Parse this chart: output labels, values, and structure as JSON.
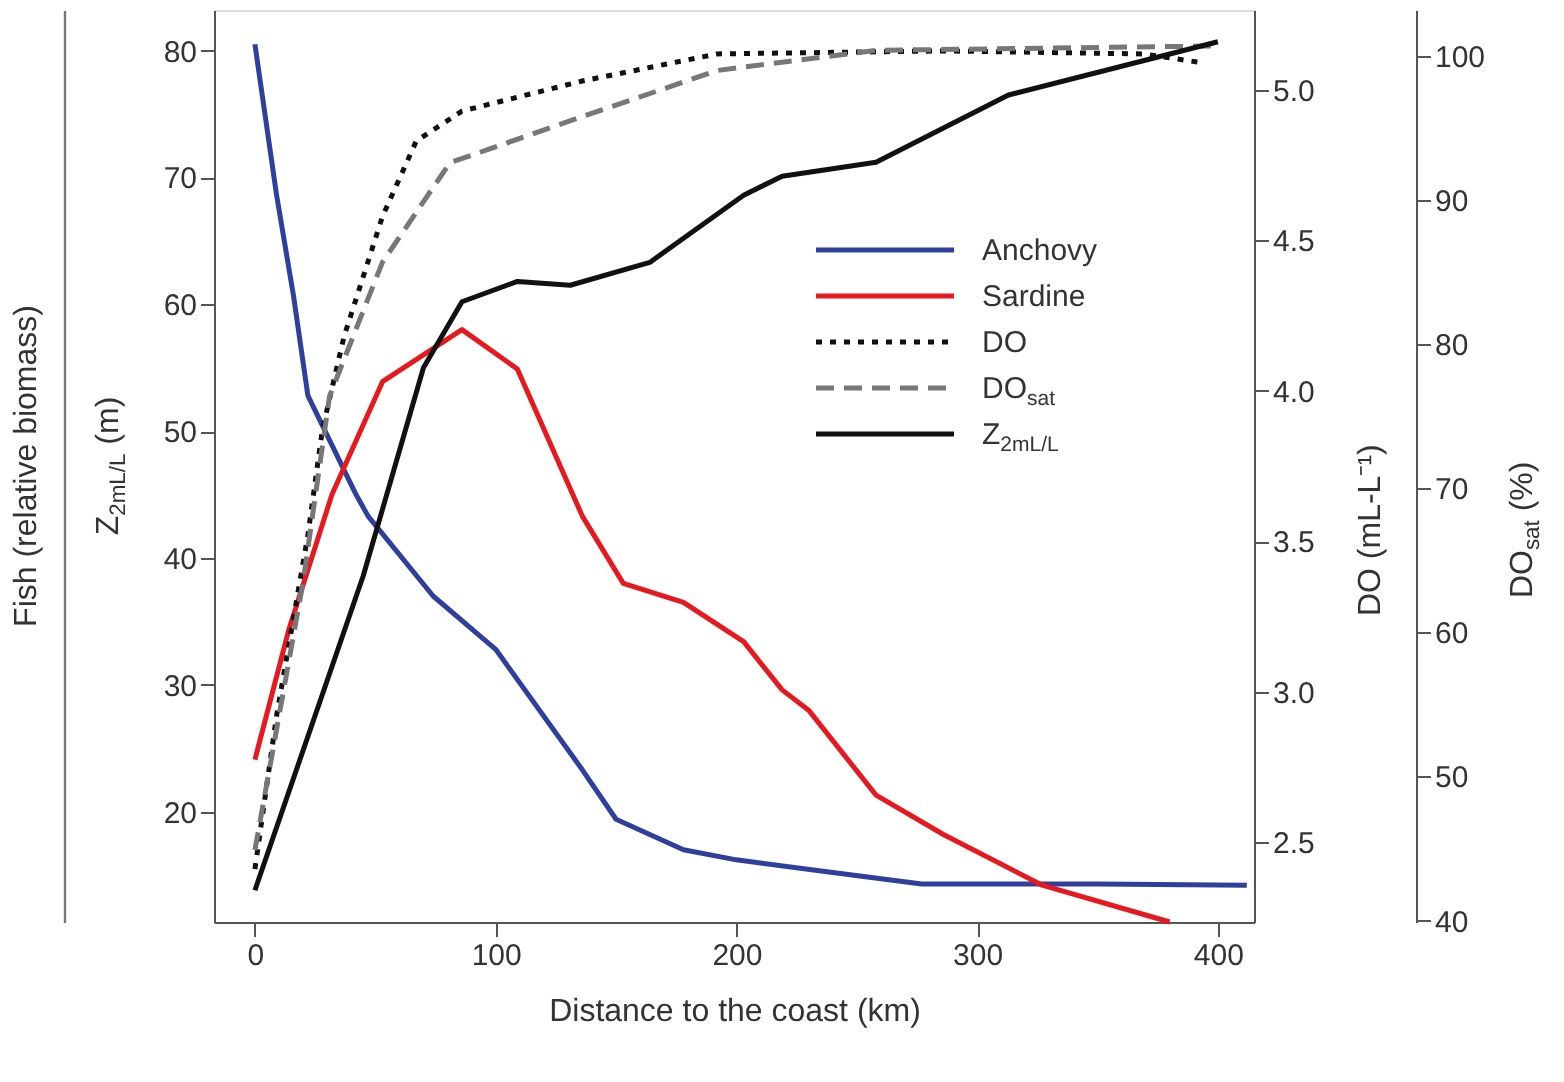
{
  "chart_data": {
    "type": "line",
    "xlabel": "Distance to the coast (km)",
    "ylabel": "Z$_{2mL/L}$ (m)",
    "y2label": "DO (mL-L⁻¹)",
    "y3label": "DO$_{sat}$ (%)",
    "annotations": [
      "Fish (relative biomass)"
    ],
    "xlim": [
      -17,
      415
    ],
    "xticks": [
      0,
      100,
      200,
      300,
      400
    ],
    "ylim": [
      11.3,
      83.2
    ],
    "yticks": [
      20,
      30,
      40,
      50,
      60,
      70,
      80
    ],
    "y2lim": [
      2.234,
      5.266
    ],
    "y2ticks": [
      2.5,
      {
        "value": 3.0,
        "label": "3.0"
      },
      3.5,
      {
        "value": 4.0,
        "label": "4.0"
      },
      4.5,
      {
        "value": 5.0,
        "label": "5.0"
      }
    ],
    "y3lim": [
      39.9,
      103.2
    ],
    "y3ticks": [
      40,
      50,
      60,
      70,
      80,
      90,
      100
    ],
    "grid": false,
    "legend": "top right",
    "marker": "none",
    "series": [
      {
        "name": "Anchovy",
        "color": "#2e3f9e",
        "line_style": "solid",
        "x": [
          0,
          9,
          16,
          22,
          42,
          47,
          74,
          100,
          136,
          150,
          178,
          200,
          240,
          277,
          350,
          412
        ],
        "values": [
          80.5,
          68.6,
          60.7,
          52.8,
          45,
          43.3,
          37,
          32.8,
          23.3,
          19.4,
          17,
          16.2,
          15.2,
          14.3,
          14.3,
          14.2
        ]
      },
      {
        "name": "Sardine",
        "color": "#e8191e",
        "line_style": "solid",
        "x": [
          0,
          14,
          32,
          53,
          86,
          109,
          136,
          153,
          178,
          203,
          219,
          230,
          258,
          286,
          327,
          380
        ],
        "values": [
          24.1,
          34.3,
          45,
          53.9,
          58,
          54.9,
          43.3,
          38,
          36.5,
          33.4,
          29.6,
          28,
          21.3,
          18.2,
          14.2,
          11.3
        ]
      },
      {
        "name": "DO",
        "color": "#111111",
        "axis": "y2",
        "line_style": "dotted",
        "x": [
          0,
          9,
          22,
          28,
          37,
          53,
          67,
          86,
          136,
          192,
          286,
          369,
          394
        ],
        "values": [
          2.41,
          2.92,
          3.52,
          3.87,
          4.18,
          4.58,
          4.83,
          4.93,
          5.03,
          5.12,
          5.13,
          5.12,
          5.09
        ]
      },
      {
        "name": "DO$_{sat}$",
        "color": "#777777",
        "axis": "y3",
        "line_style": "dashed",
        "x": [
          0,
          20,
          31,
          53,
          81,
          136,
          192,
          258,
          397
        ],
        "values": [
          44.9,
          63.5,
          76.4,
          85.7,
          92.6,
          95.8,
          99.0,
          100.4,
          100.7
        ]
      },
      {
        "name": "Z$_{2mL/L}$",
        "color": "#111111",
        "line_style": "solid",
        "x": [
          0,
          45,
          70,
          86,
          109,
          131,
          164,
          203,
          219,
          258,
          313,
          400
        ],
        "values": [
          13.8,
          38.6,
          55,
          60.2,
          61.8,
          61.5,
          63.3,
          68.6,
          70.1,
          71.2,
          76.5,
          80.7
        ]
      }
    ]
  }
}
